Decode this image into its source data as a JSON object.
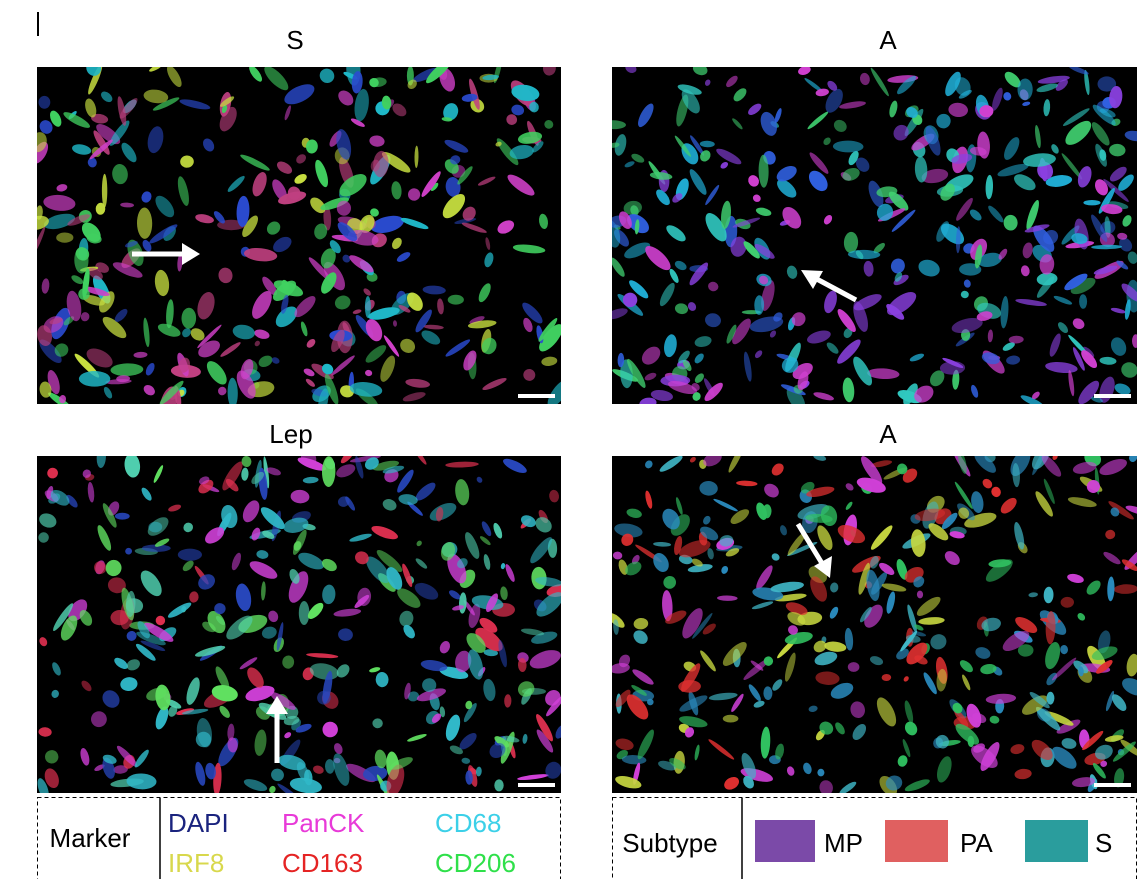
{
  "panels": [
    {
      "title": "S"
    },
    {
      "title": "A"
    },
    {
      "title": "Lep"
    },
    {
      "title": "A"
    }
  ],
  "legend_marker": {
    "title": "Marker",
    "items": [
      "DAPI",
      "PanCK",
      "CD68",
      "IRF8",
      "CD163",
      "CD206"
    ]
  },
  "legend_subtype": {
    "title": "Subtype",
    "items": [
      "MP",
      "PA",
      "S"
    ]
  }
}
